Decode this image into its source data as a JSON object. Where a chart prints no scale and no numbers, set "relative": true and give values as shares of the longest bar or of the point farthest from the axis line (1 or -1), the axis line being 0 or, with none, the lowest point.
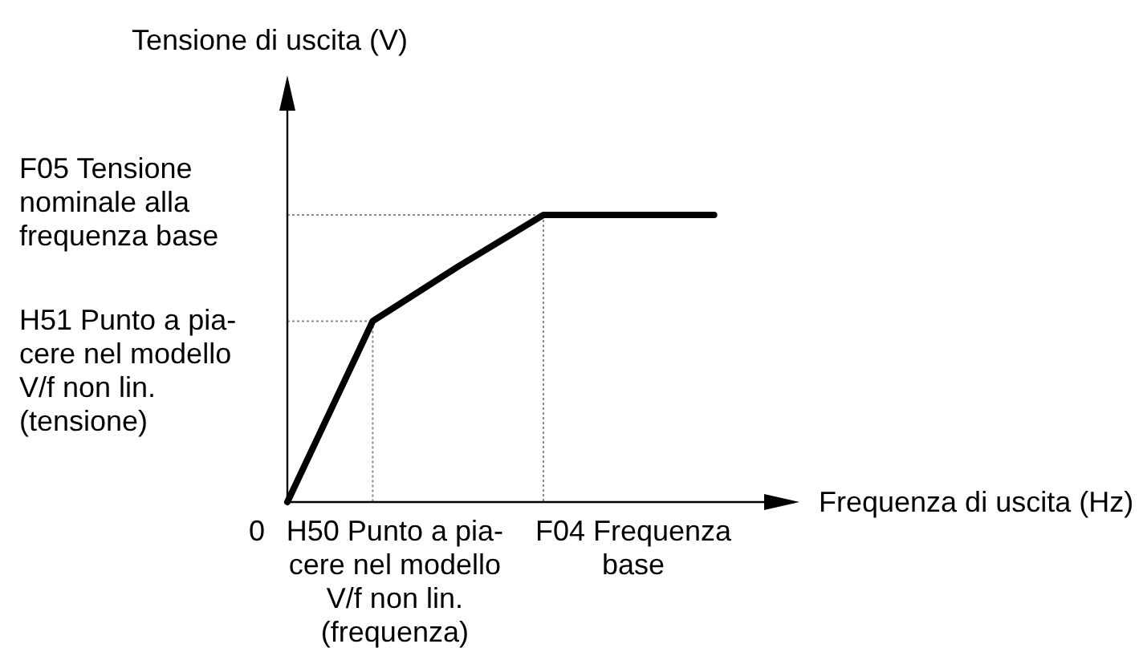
{
  "chart_data": {
    "type": "line",
    "relative": true,
    "xlabel": "Frequenza di uscita (Hz)",
    "categories": [
      null,
      null,
      null,
      null,
      null,
      null,
      null
    ],
    "series": [
      {
        "color": "#000000",
        "values": [
          0,
          0.63,
          0.82,
          1,
          1,
          1,
          null
        ]
      }
    ],
    "line_style": "solid",
    "annotations": [
      "Tensione di uscita (V)",
      "0",
      "H50 Punto a pia-\ncere nel modello\nV/f non lin.\n(frequenza)",
      "F04 Frequenza\nbase"
    ],
    "ref_lines": [
      {
        "axis": "y",
        "value": 0.63,
        "label": "H51 Punto a pia-\ncere nel modello\nV/f non lin.\n(tensione)",
        "line_style": "dotted",
        "color": "#8c8c8c"
      },
      {
        "axis": "y",
        "value": 1,
        "label": "F05 Tensione\nnominale alla\nfrequenza base",
        "line_style": "dotted",
        "color": "#8c8c8c"
      }
    ]
  }
}
